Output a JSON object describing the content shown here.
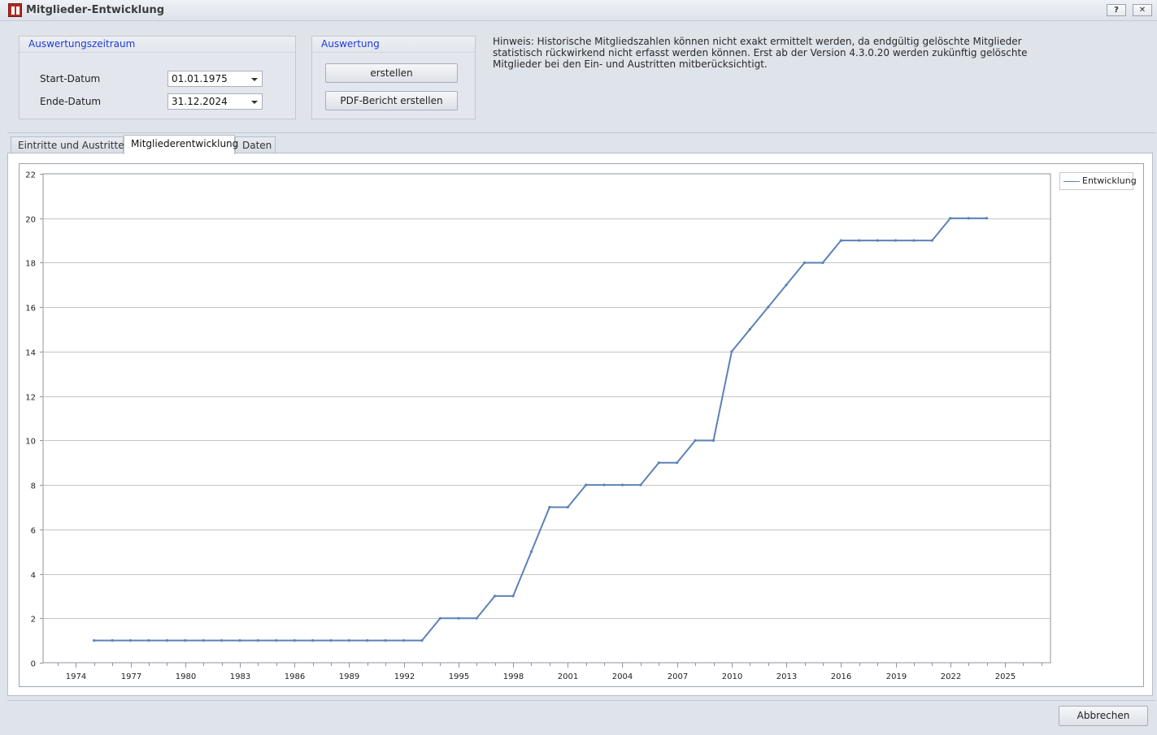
{
  "window": {
    "title": "Mitglieder-Entwicklung",
    "help_label": "?",
    "close_label": "✕"
  },
  "period_group": {
    "title": "Auswertungszeitraum",
    "start_label": "Start-Datum",
    "start_value": "01.01.1975",
    "end_label": "Ende-Datum",
    "end_value": "31.12.2024"
  },
  "eval_group": {
    "title": "Auswertung",
    "create_label": "erstellen",
    "pdf_label": "PDF-Bericht erstellen"
  },
  "hint": "Hinweis: Historische Mitgliedszahlen können nicht exakt ermittelt werden, da endgültig gelöschte Mitglieder statistisch rückwirkend nicht erfasst werden können. Erst ab der Version 4.3.0.20 werden zukünftig gelöschte Mitglieder bei den Ein- und Austritten mitberücksichtigt.",
  "tabs": [
    {
      "label": "Eintritte und Austritte",
      "active": false
    },
    {
      "label": "Mitgliederentwicklung",
      "active": true
    },
    {
      "label": "Daten",
      "active": false
    }
  ],
  "colors": {
    "series": "#5b82b8",
    "accent_text": "#1f39d6"
  },
  "chart_data": {
    "type": "line",
    "title": "",
    "xlabel": "",
    "ylabel": "",
    "xlim": [
      1972.2,
      2027.5
    ],
    "ylim": [
      0,
      22
    ],
    "x_ticks": [
      1974,
      1977,
      1980,
      1983,
      1986,
      1989,
      1992,
      1995,
      1998,
      2001,
      2004,
      2007,
      2010,
      2013,
      2016,
      2019,
      2022,
      2025
    ],
    "y_ticks": [
      0,
      2,
      4,
      6,
      8,
      10,
      12,
      14,
      16,
      18,
      20,
      22
    ],
    "grid": true,
    "legend": "top-right",
    "series": [
      {
        "name": "Entwicklung",
        "x": [
          1975,
          1976,
          1977,
          1978,
          1979,
          1980,
          1981,
          1982,
          1983,
          1984,
          1985,
          1986,
          1987,
          1988,
          1989,
          1990,
          1991,
          1992,
          1993,
          1994,
          1995,
          1996,
          1997,
          1998,
          1999,
          2000,
          2001,
          2002,
          2003,
          2004,
          2005,
          2006,
          2007,
          2008,
          2009,
          2010,
          2011,
          2012,
          2013,
          2014,
          2015,
          2016,
          2017,
          2018,
          2019,
          2020,
          2021,
          2022,
          2023,
          2024
        ],
        "y": [
          1,
          1,
          1,
          1,
          1,
          1,
          1,
          1,
          1,
          1,
          1,
          1,
          1,
          1,
          1,
          1,
          1,
          1,
          1,
          2,
          2,
          2,
          3,
          3,
          5,
          7,
          7,
          8,
          8,
          8,
          8,
          9,
          9,
          10,
          10,
          14,
          15,
          16,
          17,
          18,
          18,
          19,
          19,
          19,
          19,
          19,
          19,
          20,
          20,
          20
        ]
      }
    ]
  },
  "footer": {
    "cancel_label": "Abbrechen"
  }
}
